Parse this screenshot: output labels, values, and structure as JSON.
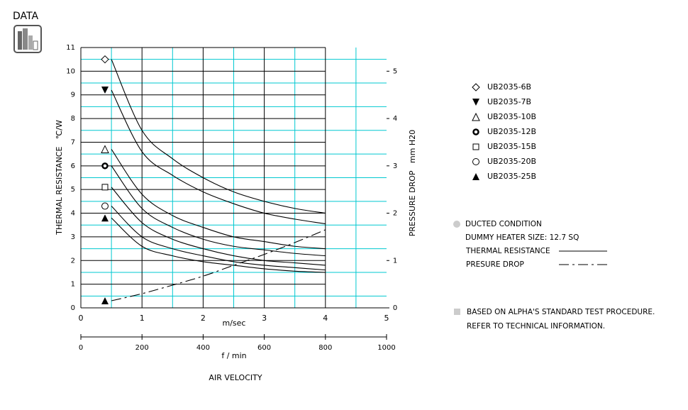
{
  "header": "DATA",
  "chart_data": {
    "type": "line",
    "x_label": "m/sec",
    "x2_label": "f / min",
    "axis_title": "AIR VELOCITY",
    "y_label": "THERMAL RESISTANCE   ℃/W",
    "y2_label": "PRESSURE DROP   mm H20",
    "x": [
      0.5,
      1,
      1.5,
      2,
      2.5,
      3,
      3.5,
      4
    ],
    "xlim": [
      0,
      5
    ],
    "xticks": [
      0,
      1,
      2,
      3,
      4,
      5
    ],
    "x2lim": [
      0,
      1000
    ],
    "x2ticks": [
      0,
      200,
      400,
      600,
      800,
      1000
    ],
    "ylim": [
      0,
      11
    ],
    "yticks": [
      0,
      1,
      2,
      3,
      4,
      5,
      6,
      7,
      8,
      9,
      10,
      11
    ],
    "y2lim": [
      0,
      5.5
    ],
    "y2ticks": [
      0,
      1,
      2,
      3,
      4,
      5
    ],
    "grid": true,
    "grid_color": "#00c8d0",
    "color": "#000000",
    "series": [
      {
        "name": "UB2035-6B",
        "marker": "diamond",
        "values": [
          10.5,
          7.5,
          6.3,
          5.5,
          4.9,
          4.5,
          4.2,
          4.0
        ]
      },
      {
        "name": "UB2035-7B",
        "marker": "triangle-down",
        "values": [
          9.2,
          6.6,
          5.6,
          4.9,
          4.4,
          4.0,
          3.75,
          3.55
        ]
      },
      {
        "name": "UB2035-10B",
        "marker": "triangle-open",
        "values": [
          6.7,
          4.8,
          3.9,
          3.4,
          3.0,
          2.8,
          2.6,
          2.5
        ]
      },
      {
        "name": "UB2035-12B",
        "marker": "ring",
        "values": [
          6.0,
          4.2,
          3.4,
          2.9,
          2.6,
          2.45,
          2.3,
          2.2
        ]
      },
      {
        "name": "UB2035-15B",
        "marker": "square-open",
        "values": [
          5.1,
          3.6,
          2.9,
          2.5,
          2.2,
          2.0,
          1.9,
          1.8
        ]
      },
      {
        "name": "UB2035-20B",
        "marker": "circle-open",
        "values": [
          4.3,
          3.0,
          2.5,
          2.2,
          1.95,
          1.8,
          1.7,
          1.6
        ]
      },
      {
        "name": "UB2035-25B",
        "marker": "triangle",
        "values": [
          3.8,
          2.6,
          2.2,
          1.95,
          1.8,
          1.65,
          1.55,
          1.5
        ]
      },
      {
        "axis": "y2",
        "marker": "triangle",
        "dash": "dash-dot",
        "values": [
          0.15,
          0.3,
          0.48,
          0.67,
          0.9,
          1.13,
          1.38,
          1.65
        ]
      }
    ],
    "line_legend": [
      {
        "label": "THERMAL RESISTANCE",
        "dash": "solid"
      },
      {
        "label": "PRESURE DROP",
        "dash": "dash-dot"
      }
    ],
    "notes": [
      "DUCTED CONDITION",
      "DUMMY HEATER SIZE: 12.7 SQ"
    ],
    "footnote": [
      "BASED ON ALPHA'S STANDARD TEST PROCEDURE.",
      "REFER TO TECHNICAL INFORMATION."
    ]
  }
}
